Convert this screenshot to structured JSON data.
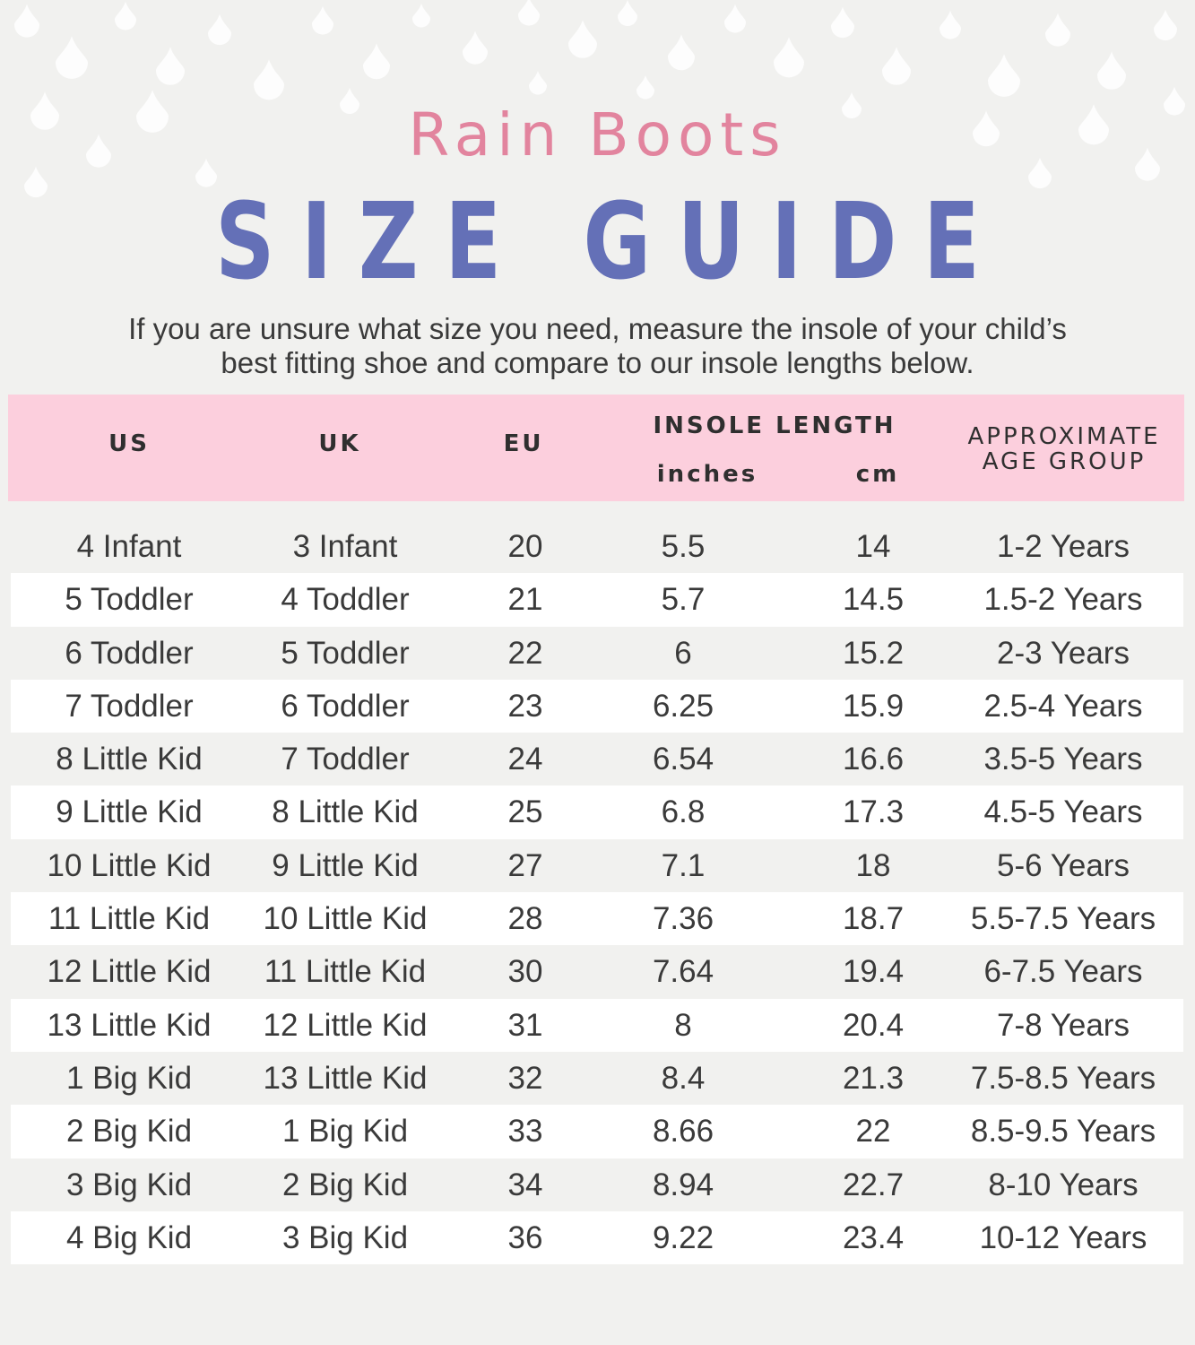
{
  "title_top": "Rain Boots",
  "title_main": "SIZE GUIDE",
  "intro": {
    "line1": "If you are unsure what size you need, measure the insole of your child’s",
    "line2": "best fitting shoe and compare to our insole lengths below."
  },
  "header": {
    "us": "US",
    "uk": "UK",
    "eu": "EU",
    "insole_length": "INSOLE LENGTH",
    "inches": "inches",
    "cm": "cm",
    "age_line1": "APPROXIMATE",
    "age_line2": "AGE GROUP"
  },
  "rows": [
    [
      "4 Infant",
      "3 Infant",
      "20",
      "5.5",
      "14",
      "1-2 Years"
    ],
    [
      "5 Toddler",
      "4 Toddler",
      "21",
      "5.7",
      "14.5",
      "1.5-2 Years"
    ],
    [
      "6 Toddler",
      "5 Toddler",
      "22",
      "6",
      "15.2",
      "2-3 Years"
    ],
    [
      "7 Toddler",
      "6 Toddler",
      "23",
      "6.25",
      "15.9",
      "2.5-4 Years"
    ],
    [
      "8 Little Kid",
      "7 Toddler",
      "24",
      "6.54",
      "16.6",
      "3.5-5 Years"
    ],
    [
      "9 Little Kid",
      "8 Little Kid",
      "25",
      "6.8",
      "17.3",
      "4.5-5 Years"
    ],
    [
      "10 Little Kid",
      "9 Little Kid",
      "27",
      "7.1",
      "18",
      "5-6 Years"
    ],
    [
      "11 Little Kid",
      "10 Little Kid",
      "28",
      "7.36",
      "18.7",
      "5.5-7.5 Years"
    ],
    [
      "12 Little Kid",
      "11 Little Kid",
      "30",
      "7.64",
      "19.4",
      "6-7.5 Years"
    ],
    [
      "13 Little Kid",
      "12 Little Kid",
      "31",
      "8",
      "20.4",
      "7-8 Years"
    ],
    [
      "1 Big Kid",
      "13 Little Kid",
      "32",
      "8.4",
      "21.3",
      "7.5-8.5 Years"
    ],
    [
      "2 Big Kid",
      "1 Big Kid",
      "33",
      "8.66",
      "22",
      "8.5-9.5 Years"
    ],
    [
      "3 Big Kid",
      "2 Big Kid",
      "34",
      "8.94",
      "22.7",
      "8-10 Years"
    ],
    [
      "4 Big Kid",
      "3 Big Kid",
      "36",
      "9.22",
      "23.4",
      "10-12 Years"
    ]
  ],
  "colors": {
    "background": "#f1f1ef",
    "title_pink": "#e2849e",
    "title_blue": "#6470b7",
    "header_pink": "#fccfdd",
    "stripe": "#ffffff"
  }
}
